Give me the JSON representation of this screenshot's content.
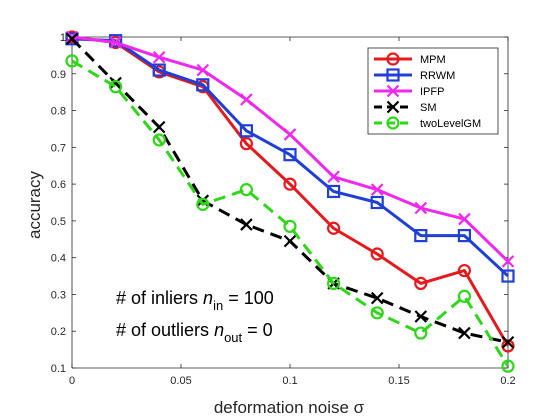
{
  "chart_data": {
    "type": "line",
    "xlabel": "deformation noise σ",
    "ylabel": "accuracy",
    "xlim": [
      0,
      0.2
    ],
    "ylim": [
      0.1,
      1.0
    ],
    "grid": false,
    "legend_position": "top-right",
    "x_ticks": [
      "0",
      "0.05",
      "0.1",
      "0.15",
      "0.2"
    ],
    "y_ticks": [
      "0.1",
      "0.2",
      "0.3",
      "0.4",
      "0.5",
      "0.6",
      "0.7",
      "0.8",
      "0.9",
      "1"
    ],
    "x": [
      0,
      0.02,
      0.04,
      0.06,
      0.08,
      0.1,
      0.12,
      0.14,
      0.16,
      0.18,
      0.2
    ],
    "series": [
      {
        "name": "MPM",
        "color": "#e41a1c",
        "marker": "circle",
        "line": "solid",
        "values": [
          1.0,
          0.985,
          0.905,
          0.865,
          0.71,
          0.6,
          0.48,
          0.41,
          0.33,
          0.365,
          0.16
        ]
      },
      {
        "name": "RRWM",
        "color": "#1f3fd6",
        "marker": "square",
        "line": "solid",
        "values": [
          0.995,
          0.99,
          0.91,
          0.87,
          0.745,
          0.68,
          0.58,
          0.55,
          0.46,
          0.46,
          0.35
        ]
      },
      {
        "name": "IPFP",
        "color": "#ee28ee",
        "marker": "x",
        "line": "solid",
        "values": [
          1.0,
          0.985,
          0.945,
          0.91,
          0.83,
          0.735,
          0.62,
          0.585,
          0.535,
          0.505,
          0.39
        ]
      },
      {
        "name": "SM",
        "color": "#000000",
        "marker": "x",
        "line": "dashed",
        "values": [
          0.995,
          0.875,
          0.755,
          0.555,
          0.49,
          0.445,
          0.33,
          0.29,
          0.24,
          0.195,
          0.17
        ]
      },
      {
        "name": "twoLevelGM",
        "color": "#2fd61a",
        "marker": "circle",
        "line": "dashed",
        "values": [
          0.935,
          0.865,
          0.72,
          0.545,
          0.585,
          0.485,
          0.33,
          0.25,
          0.195,
          0.295,
          0.105
        ]
      }
    ],
    "annotations": {
      "inliers_prefix": "# of inliers ",
      "inliers_var": "n",
      "inliers_sub": "in",
      "inliers_suffix": " = 100",
      "outliers_prefix": "# of outliers ",
      "outliers_var": "n",
      "outliers_sub": "out",
      "outliers_suffix": " = 0"
    }
  }
}
